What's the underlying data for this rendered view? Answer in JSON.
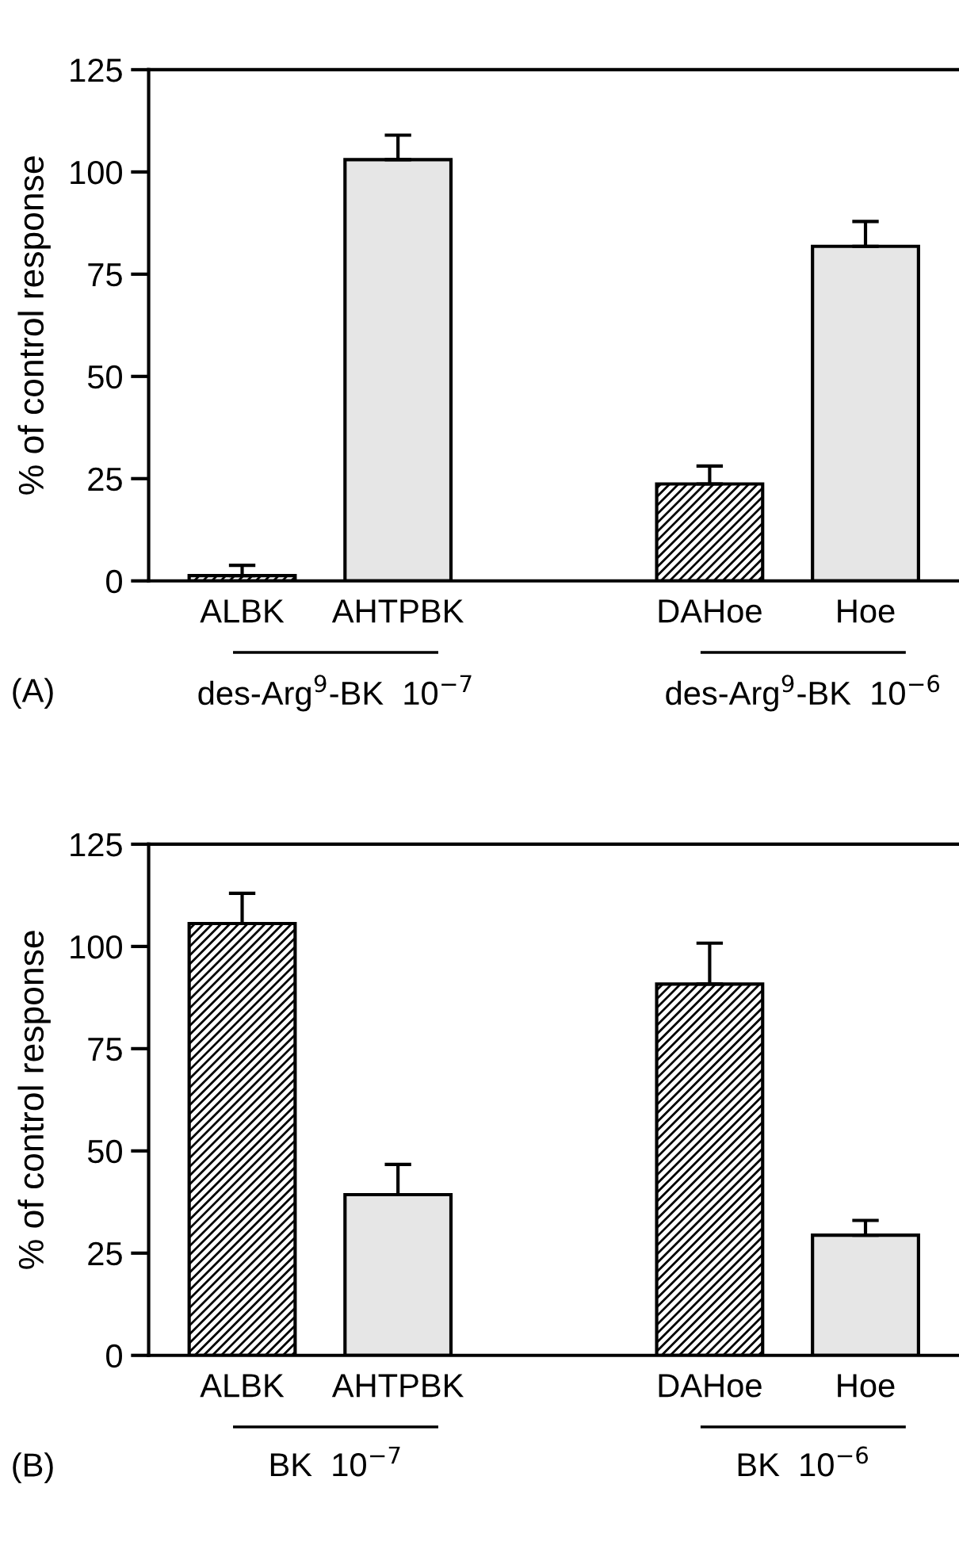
{
  "chart_data": [
    {
      "type": "bar",
      "ylabel": "% of control response",
      "categories": [
        "ALBK",
        "AHTPBK",
        null,
        "DAHoe",
        "Hoe"
      ],
      "values": [
        1.3,
        103,
        null,
        23.7,
        81.8
      ],
      "errors": [
        [
          1.3,
          3.8
        ],
        [
          103,
          109
        ],
        null,
        [
          23.7,
          28.1
        ],
        [
          81.8,
          87.9
        ]
      ],
      "colors": [
        "#000000",
        "#e6e6e6",
        "#ffffff",
        "#000000",
        "#e6e6e6"
      ],
      "ylim": [
        0,
        125
      ],
      "yticks": [
        0,
        25,
        50,
        75,
        100,
        125
      ],
      "grid": false,
      "legend": false,
      "annotations": [
        "(A)",
        "des-Arg$^{9}$-BK  10$^{−7}$",
        "des-Arg$^{9}$-BK  10$^{−6}$"
      ]
    },
    {
      "type": "bar",
      "ylabel": "% of control response",
      "categories": [
        "ALBK",
        "AHTPBK",
        null,
        "DAHoe",
        "Hoe"
      ],
      "values": [
        105.6,
        39.3,
        null,
        90.8,
        29.4
      ],
      "errors": [
        [
          105.6,
          113
        ],
        [
          39.3,
          46.7
        ],
        null,
        [
          90.8,
          100.8
        ],
        [
          29.4,
          33
        ]
      ],
      "colors": [
        "#000000",
        "#e6e6e6",
        "#ffffff",
        "#000000",
        "#e6e6e6"
      ],
      "ylim": [
        0,
        125
      ],
      "yticks": [
        0,
        25,
        50,
        75,
        100,
        125
      ],
      "grid": false,
      "legend": false,
      "annotations": [
        "(B)",
        "BK  10$^{−7}$",
        "BK  10$^{−6}$"
      ]
    }
  ]
}
